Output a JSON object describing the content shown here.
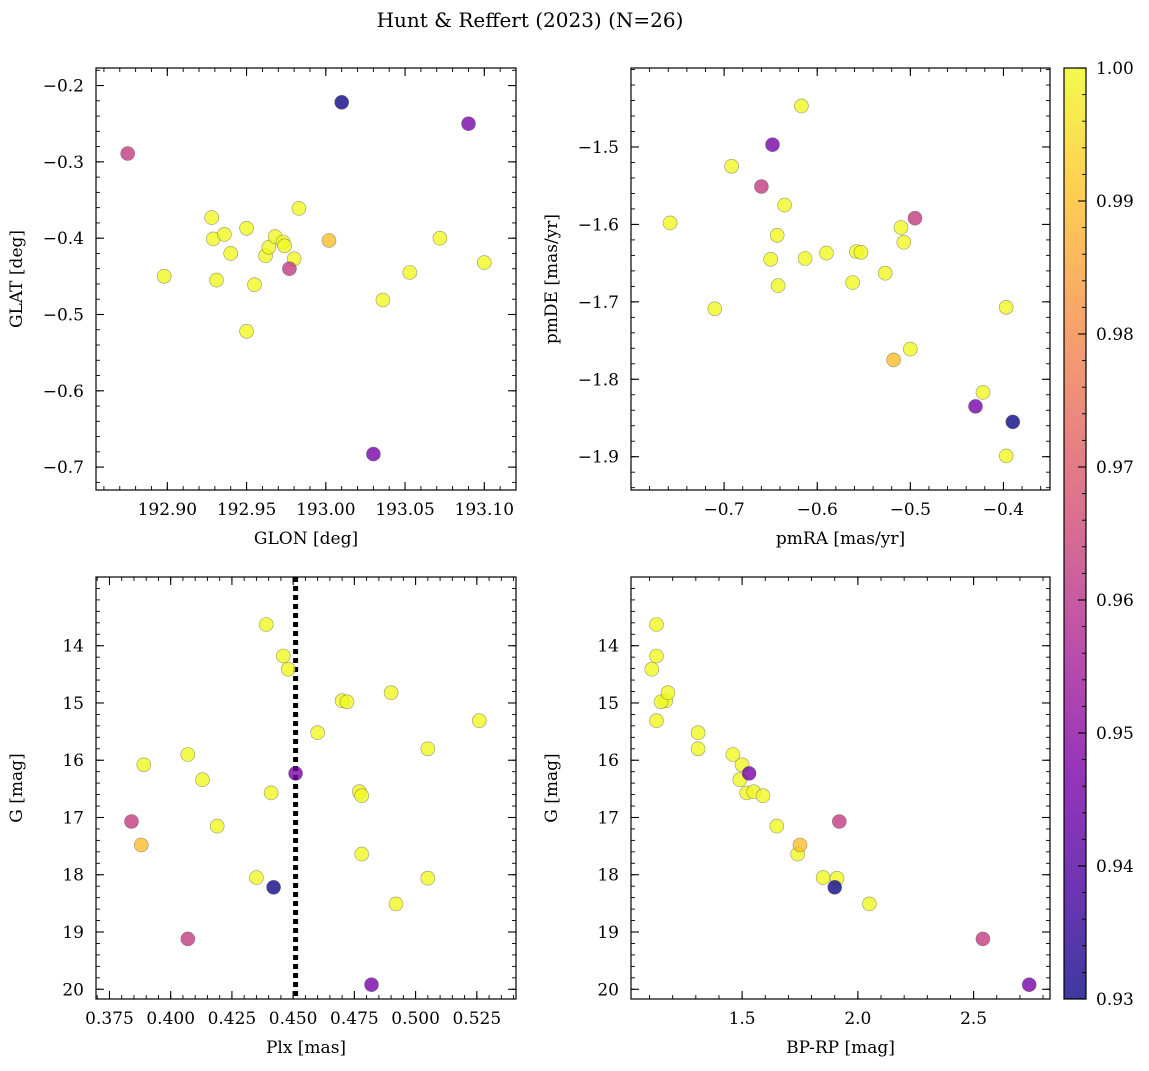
{
  "figure_title": "Hunt & Reffert (2023) (N=26)",
  "colorbar": {
    "min": 0.93,
    "max": 1.0,
    "ticks": [
      0.93,
      0.94,
      0.95,
      0.96,
      0.97,
      0.98,
      0.99,
      1.0
    ],
    "tick_labels": [
      "0.93",
      "0.94",
      "0.95",
      "0.96",
      "0.97",
      "0.98",
      "0.99",
      "1.00"
    ],
    "colormap": "plasma"
  },
  "members": [
    {
      "glon": 193.01,
      "glat": -0.222,
      "pmra": -0.39,
      "pmde": -1.855,
      "plx": 0.442,
      "g": 18.22,
      "bprp": 1.9,
      "prob": 0.93
    },
    {
      "glon": 193.09,
      "glat": -0.25,
      "pmra": -0.43,
      "pmde": -1.835,
      "plx": 0.482,
      "g": 19.92,
      "bprp": 2.74,
      "prob": 0.946
    },
    {
      "glon": 193.03,
      "glat": -0.683,
      "pmra": -0.648,
      "pmde": -1.497,
      "plx": 0.451,
      "g": 16.23,
      "bprp": 1.53,
      "prob": 0.946
    },
    {
      "glon": 192.875,
      "glat": -0.289,
      "pmra": -0.495,
      "pmde": -1.592,
      "plx": 0.384,
      "g": 17.07,
      "bprp": 1.92,
      "prob": 0.962
    },
    {
      "glon": 192.977,
      "glat": -0.44,
      "pmra": -0.66,
      "pmde": -1.551,
      "plx": 0.407,
      "g": 19.12,
      "bprp": 2.54,
      "prob": 0.962
    },
    {
      "glon": 193.002,
      "glat": -0.403,
      "pmra": -0.518,
      "pmde": -1.775,
      "plx": 0.388,
      "g": 17.48,
      "bprp": 1.75,
      "prob": 0.99
    },
    {
      "glon": 192.898,
      "glat": -0.45,
      "pmra": -0.758,
      "pmde": -1.598,
      "plx": 0.389,
      "g": 16.08,
      "bprp": 1.5,
      "prob": 1.0
    },
    {
      "glon": 192.928,
      "glat": -0.373,
      "pmra": -0.71,
      "pmde": -1.709,
      "plx": 0.407,
      "g": 15.9,
      "bprp": 1.46,
      "prob": 1.0
    },
    {
      "glon": 192.929,
      "glat": -0.401,
      "pmra": -0.692,
      "pmde": -1.525,
      "plx": 0.413,
      "g": 16.34,
      "bprp": 1.49,
      "prob": 1.0
    },
    {
      "glon": 192.931,
      "glat": -0.455,
      "pmra": -0.617,
      "pmde": -1.447,
      "plx": 0.419,
      "g": 17.15,
      "bprp": 1.65,
      "prob": 1.0
    },
    {
      "glon": 192.936,
      "glat": -0.395,
      "pmra": -0.635,
      "pmde": -1.575,
      "plx": 0.435,
      "g": 18.05,
      "bprp": 1.85,
      "prob": 1.0
    },
    {
      "glon": 192.95,
      "glat": -0.387,
      "pmra": -0.643,
      "pmde": -1.614,
      "plx": 0.439,
      "g": 13.63,
      "bprp": 1.13,
      "prob": 1.0
    },
    {
      "glon": 192.95,
      "glat": -0.522,
      "pmra": -0.65,
      "pmde": -1.645,
      "plx": 0.441,
      "g": 16.57,
      "bprp": 1.52,
      "prob": 1.0
    },
    {
      "glon": 192.955,
      "glat": -0.461,
      "pmra": -0.642,
      "pmde": -1.679,
      "plx": 0.446,
      "g": 14.18,
      "bprp": 1.13,
      "prob": 1.0
    },
    {
      "glon": 192.962,
      "glat": -0.423,
      "pmra": -0.613,
      "pmde": -1.644,
      "plx": 0.448,
      "g": 14.41,
      "bprp": 1.11,
      "prob": 1.0
    },
    {
      "glon": 192.964,
      "glat": -0.412,
      "pmra": -0.59,
      "pmde": -1.637,
      "plx": 0.46,
      "g": 15.52,
      "bprp": 1.31,
      "prob": 1.0
    },
    {
      "glon": 192.968,
      "glat": -0.398,
      "pmra": -0.562,
      "pmde": -1.675,
      "plx": 0.47,
      "g": 14.96,
      "bprp": 1.17,
      "prob": 1.0
    },
    {
      "glon": 192.973,
      "glat": -0.405,
      "pmra": -0.558,
      "pmde": -1.635,
      "plx": 0.472,
      "g": 14.98,
      "bprp": 1.15,
      "prob": 1.0
    },
    {
      "glon": 192.974,
      "glat": -0.41,
      "pmra": -0.553,
      "pmde": -1.636,
      "plx": 0.477,
      "g": 16.55,
      "bprp": 1.55,
      "prob": 1.0
    },
    {
      "glon": 192.98,
      "glat": -0.427,
      "pmra": -0.527,
      "pmde": -1.663,
      "plx": 0.478,
      "g": 16.62,
      "bprp": 1.59,
      "prob": 1.0
    },
    {
      "glon": 192.983,
      "glat": -0.361,
      "pmra": -0.51,
      "pmde": -1.604,
      "plx": 0.478,
      "g": 17.64,
      "bprp": 1.74,
      "prob": 1.0
    },
    {
      "glon": 193.036,
      "glat": -0.481,
      "pmra": -0.507,
      "pmde": -1.623,
      "plx": 0.49,
      "g": 14.82,
      "bprp": 1.18,
      "prob": 1.0
    },
    {
      "glon": 193.053,
      "glat": -0.445,
      "pmra": -0.5,
      "pmde": -1.761,
      "plx": 0.492,
      "g": 18.51,
      "bprp": 2.05,
      "prob": 1.0
    },
    {
      "glon": 193.072,
      "glat": -0.4,
      "pmra": -0.422,
      "pmde": -1.817,
      "plx": 0.505,
      "g": 15.8,
      "bprp": 1.31,
      "prob": 1.0
    },
    {
      "glon": 193.1,
      "glat": -0.432,
      "pmra": -0.397,
      "pmde": -1.707,
      "plx": 0.505,
      "g": 18.06,
      "bprp": 1.91,
      "prob": 1.0
    },
    {
      "glon": 192.94,
      "glat": -0.42,
      "pmra": -0.397,
      "pmde": -1.899,
      "plx": 0.526,
      "g": 15.31,
      "bprp": 1.13,
      "prob": 1.0
    }
  ],
  "chart_data": [
    {
      "type": "scatter",
      "title": "",
      "xlabel": "GLON [deg]",
      "ylabel": "GLAT [deg]",
      "xkey": "glon",
      "ykey": "glat",
      "xlim": [
        192.855,
        193.12
      ],
      "ylim": [
        -0.73,
        -0.177
      ],
      "xticks": [
        192.9,
        192.95,
        193.0,
        193.05,
        193.1
      ],
      "xtick_labels": [
        "192.90",
        "192.95",
        "193.00",
        "193.05",
        "193.10"
      ],
      "xminor": 0.01,
      "yticks": [
        -0.7,
        -0.6,
        -0.5,
        -0.4,
        -0.3,
        -0.2
      ],
      "ytick_labels": [
        "−0.7",
        "−0.6",
        "−0.5",
        "−0.4",
        "−0.3",
        "−0.2"
      ],
      "yminor": 0.02,
      "yinvert": false
    },
    {
      "type": "scatter",
      "title": "",
      "xlabel": "pmRA [mas/yr]",
      "ylabel": "pmDE [mas/yr]",
      "xkey": "pmra",
      "ykey": "pmde",
      "xlim": [
        -0.8,
        -0.35
      ],
      "ylim": [
        -1.943,
        -1.398
      ],
      "xticks": [
        -0.7,
        -0.6,
        -0.5,
        -0.4
      ],
      "xtick_labels": [
        "−0.7",
        "−0.6",
        "−0.5",
        "−0.4"
      ],
      "xminor": 0.02,
      "yticks": [
        -1.9,
        -1.8,
        -1.7,
        -1.6,
        -1.5
      ],
      "ytick_labels": [
        "−1.9",
        "−1.8",
        "−1.7",
        "−1.6",
        "−1.5"
      ],
      "yminor": 0.02,
      "yinvert": false
    },
    {
      "type": "scatter",
      "title": "",
      "xlabel": "Plx [mas]",
      "ylabel": "G [mag]",
      "xkey": "plx",
      "ykey": "g",
      "xlim": [
        0.3695,
        0.541
      ],
      "ylim": [
        12.8,
        20.17
      ],
      "xticks": [
        0.375,
        0.4,
        0.425,
        0.45,
        0.475,
        0.5,
        0.525
      ],
      "xtick_labels": [
        "0.375",
        "0.400",
        "0.425",
        "0.450",
        "0.475",
        "0.500",
        "0.525"
      ],
      "xminor": 0.005,
      "yticks": [
        14,
        15,
        16,
        17,
        18,
        19,
        20
      ],
      "ytick_labels": [
        "14",
        "15",
        "16",
        "17",
        "18",
        "19",
        "20"
      ],
      "yminor": 0.2,
      "yinvert": true,
      "vline": 0.451
    },
    {
      "type": "scatter",
      "title": "",
      "xlabel": "BP-RP [mag]",
      "ylabel": "G [mag]",
      "xkey": "bprp",
      "ykey": "g",
      "xlim": [
        1.02,
        2.83
      ],
      "ylim": [
        12.8,
        20.17
      ],
      "xticks": [
        1.5,
        2.0,
        2.5
      ],
      "xtick_labels": [
        "1.5",
        "2.0",
        "2.5"
      ],
      "xminor": 0.1,
      "yticks": [
        14,
        15,
        16,
        17,
        18,
        19,
        20
      ],
      "ytick_labels": [
        "14",
        "15",
        "16",
        "17",
        "18",
        "19",
        "20"
      ],
      "yminor": 0.2,
      "yinvert": true
    }
  ]
}
